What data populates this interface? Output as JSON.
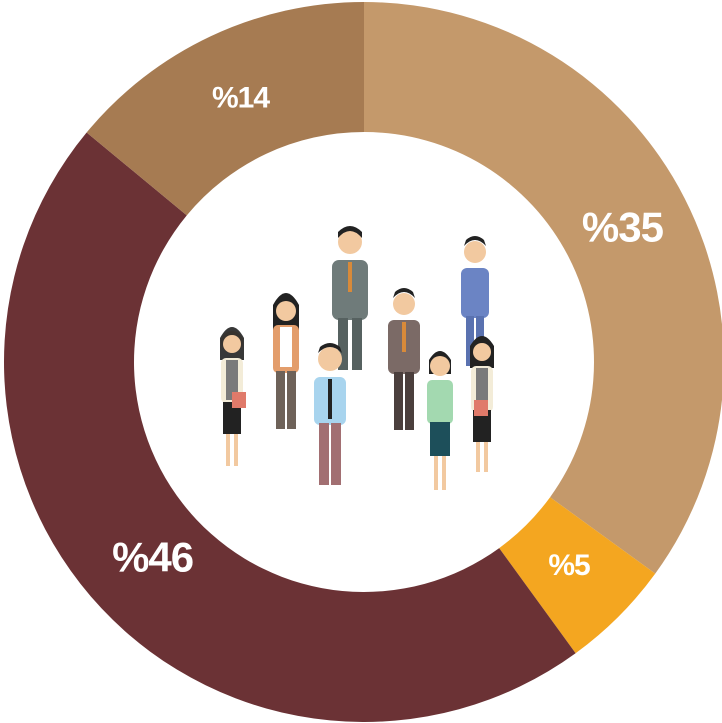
{
  "chart_data": {
    "type": "pie",
    "values": [
      35,
      5,
      46,
      14
    ],
    "value_labels": [
      "%35",
      "%5",
      "%46",
      "%14"
    ],
    "colors": [
      "#c4996b",
      "#f4a620",
      "#6b3235",
      "#a67b52"
    ]
  }
}
